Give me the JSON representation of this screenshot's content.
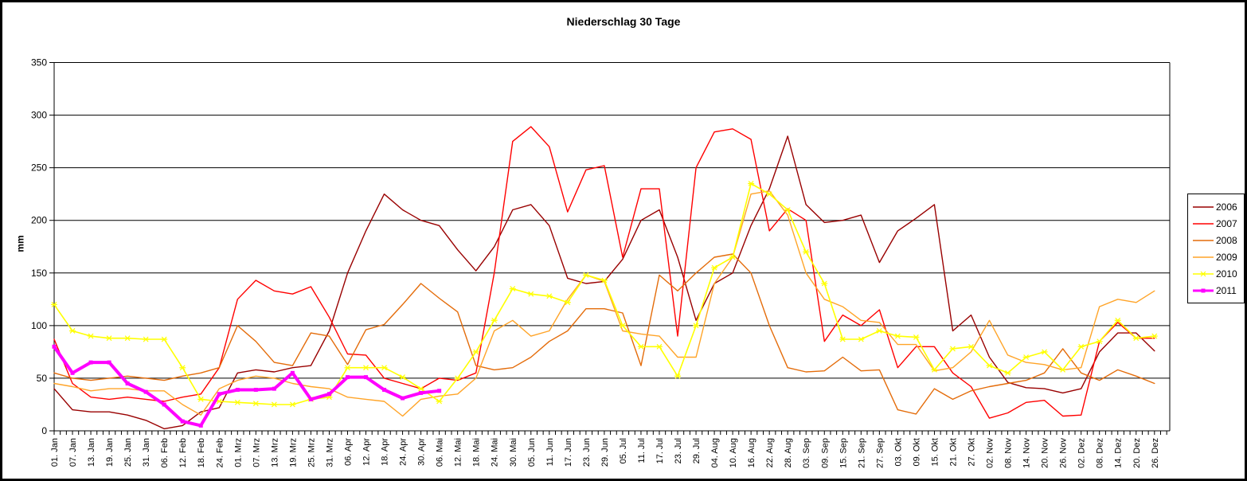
{
  "chart_data": {
    "type": "line",
    "title": "Niederschlag 30 Tage",
    "ylabel": "mm",
    "ylim": [
      0,
      350
    ],
    "ytick_labels": [
      "0",
      "50",
      "100",
      "150",
      "200",
      "250",
      "300",
      "350"
    ],
    "grid": "horizontal",
    "legend_position": "right-outside",
    "total_days": 366,
    "tick_step_days": 6,
    "categories": [
      "01. Jan",
      "07. Jan",
      "13. Jan",
      "19. Jan",
      "25. Jan",
      "31. Jan",
      "06. Feb",
      "12. Feb",
      "18. Feb",
      "24. Feb",
      "01. Mrz",
      "07. Mrz",
      "13. Mrz",
      "19. Mrz",
      "25. Mrz",
      "31. Mrz",
      "06. Apr",
      "12. Apr",
      "18. Apr",
      "24. Apr",
      "30. Apr",
      "06. Mai",
      "12. Mai",
      "18. Mai",
      "24. Mai",
      "30. Mai",
      "05. Jun",
      "11. Jun",
      "17. Jun",
      "23. Jun",
      "29. Jun",
      "05. Jul",
      "11. Jul",
      "17. Jul",
      "23. Jul",
      "29. Jul",
      "04. Aug",
      "10. Aug",
      "16. Aug",
      "22. Aug",
      "28. Aug",
      "03. Sep",
      "09. Sep",
      "15. Sep",
      "21. Sep",
      "27. Sep",
      "03. Okt",
      "09. Okt",
      "15. Okt",
      "21. Okt",
      "27. Okt",
      "02. Nov",
      "08. Nov",
      "14. Nov",
      "20. Nov",
      "26. Nov",
      "02. Dez",
      "08. Dez",
      "14. Dez",
      "20. Dez",
      "26. Dez"
    ],
    "series": [
      {
        "name": "2006",
        "color": "#990000",
        "width": 1.4,
        "marker": "none",
        "values": [
          40,
          20,
          18,
          18,
          15,
          10,
          2,
          5,
          18,
          22,
          55,
          58,
          56,
          60,
          62,
          95,
          150,
          190,
          225,
          210,
          200,
          195,
          172,
          152,
          175,
          210,
          215,
          195,
          145,
          140,
          142,
          163,
          200,
          210,
          165,
          105,
          140,
          150,
          195,
          230,
          280,
          215,
          198,
          200,
          205,
          160,
          190,
          202,
          215,
          95,
          110,
          70,
          46,
          41,
          40,
          36,
          40,
          75,
          93,
          93,
          76
        ]
      },
      {
        "name": "2007",
        "color": "#FF0000",
        "width": 1.4,
        "marker": "none",
        "values": [
          87,
          45,
          32,
          30,
          32,
          30,
          28,
          32,
          35,
          60,
          125,
          143,
          133,
          130,
          137,
          108,
          73,
          72,
          50,
          45,
          40,
          50,
          48,
          55,
          150,
          275,
          289,
          270,
          208,
          248,
          252,
          165,
          230,
          230,
          90,
          250,
          284,
          287,
          277,
          190,
          211,
          200,
          85,
          110,
          100,
          115,
          60,
          80,
          80,
          55,
          42,
          12,
          17,
          27,
          29,
          14,
          15,
          85,
          103,
          88,
          88
        ]
      },
      {
        "name": "2008",
        "color": "#E46C0A",
        "width": 1.4,
        "marker": "none",
        "values": [
          55,
          50,
          48,
          50,
          52,
          50,
          48,
          52,
          55,
          60,
          100,
          85,
          65,
          62,
          93,
          90,
          63,
          96,
          101,
          120,
          140,
          126,
          113,
          62,
          58,
          60,
          70,
          85,
          95,
          116,
          116,
          112,
          62,
          148,
          133,
          150,
          165,
          168,
          150,
          100,
          60,
          56,
          57,
          70,
          57,
          58,
          20,
          16,
          40,
          30,
          38,
          42,
          45,
          48,
          55,
          78,
          55,
          48,
          58,
          52,
          45
        ]
      },
      {
        "name": "2009",
        "color": "#FFA428",
        "width": 1.4,
        "marker": "none",
        "values": [
          45,
          42,
          38,
          40,
          40,
          38,
          38,
          25,
          15,
          40,
          48,
          52,
          50,
          45,
          42,
          40,
          32,
          30,
          28,
          14,
          30,
          33,
          35,
          50,
          95,
          105,
          90,
          95,
          125,
          148,
          142,
          95,
          92,
          90,
          70,
          70,
          140,
          165,
          225,
          228,
          205,
          150,
          125,
          118,
          105,
          103,
          82,
          82,
          57,
          60,
          75,
          105,
          72,
          65,
          63,
          58,
          60,
          118,
          125,
          122,
          133
        ]
      },
      {
        "name": "2010",
        "color": "#FFFF00",
        "width": 1.6,
        "marker": "star",
        "values": [
          120,
          95,
          90,
          88,
          88,
          87,
          87,
          60,
          30,
          28,
          27,
          26,
          25,
          25,
          30,
          32,
          60,
          60,
          60,
          51,
          40,
          28,
          50,
          75,
          105,
          135,
          130,
          128,
          122,
          148,
          143,
          100,
          80,
          80,
          52,
          100,
          155,
          165,
          235,
          225,
          210,
          170,
          140,
          87,
          87,
          95,
          90,
          89,
          58,
          78,
          80,
          62,
          55,
          70,
          75,
          58,
          80,
          85,
          105,
          88,
          90
        ]
      },
      {
        "name": "2011",
        "color": "#FF00FF",
        "width": 4,
        "marker": "square",
        "values": [
          80,
          55,
          65,
          65,
          45,
          37,
          25,
          9,
          5,
          35,
          39,
          39,
          40,
          55,
          30,
          35,
          51,
          51,
          39,
          31,
          36,
          38,
          null,
          null,
          null,
          null,
          null,
          null,
          null,
          null,
          null,
          null,
          null,
          null,
          null,
          null,
          null,
          null,
          null,
          null,
          null,
          null,
          null,
          null,
          null,
          null,
          null,
          null,
          null,
          null,
          null,
          null,
          null,
          null,
          null,
          null,
          null,
          null,
          null,
          null,
          null
        ]
      }
    ],
    "axis_color": "#000000",
    "plot_background": "#FFFFFF"
  }
}
